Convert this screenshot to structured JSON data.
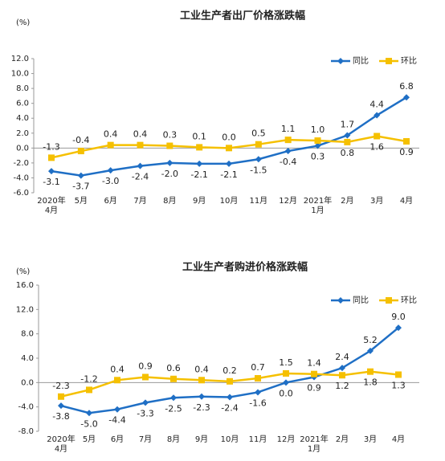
{
  "chart_data": [
    {
      "type": "line",
      "title": "工业生产者出厂价格涨跌幅",
      "y_label": "(%)",
      "categories": [
        "2020年\n4月",
        "5月",
        "6月",
        "7月",
        "8月",
        "9月",
        "10月",
        "11月",
        "12月",
        "2021年\n1月",
        "2月",
        "3月",
        "4月"
      ],
      "ylim": [
        -6,
        12
      ],
      "yticks": [
        {
          "value": -6,
          "label": "-6.0"
        },
        {
          "value": -4,
          "label": "-4.0"
        },
        {
          "value": -2,
          "label": "-2.0"
        },
        {
          "value": 0,
          "label": "0.0"
        },
        {
          "value": 2,
          "label": "2.0"
        },
        {
          "value": 4,
          "label": "4.0"
        },
        {
          "value": 6,
          "label": "6.0"
        },
        {
          "value": 8,
          "label": "8.0"
        },
        {
          "value": 10,
          "label": "10.0"
        },
        {
          "value": 12,
          "label": "12.0"
        }
      ],
      "legend": "top-right",
      "series": [
        {
          "name": "同比",
          "color": "#1f6fc5",
          "marker": "diamond",
          "values": [
            -3.1,
            -3.7,
            -3.0,
            -2.4,
            -2.0,
            -2.1,
            -2.1,
            -1.5,
            -0.4,
            0.3,
            1.7,
            4.4,
            6.8
          ],
          "value_labels": [
            "-3.1",
            "-3.7",
            "-3.0",
            "-2.4",
            "-2.0",
            "-2.1",
            "-2.1",
            "-1.5",
            "-0.4",
            "0.3",
            "1.7",
            "4.4",
            "6.8"
          ]
        },
        {
          "name": "环比",
          "color": "#f5c000",
          "marker": "square",
          "values": [
            -1.3,
            -0.4,
            0.4,
            0.4,
            0.3,
            0.1,
            0.0,
            0.5,
            1.1,
            1.0,
            0.8,
            1.6,
            0.9
          ],
          "value_labels": [
            "-1.3",
            "-0.4",
            "0.4",
            "0.4",
            "0.3",
            "0.1",
            "0.0",
            "0.5",
            "1.1",
            "1.0",
            "0.8",
            "1.6",
            "0.9"
          ]
        }
      ]
    },
    {
      "type": "line",
      "title": "工业生产者购进价格涨跌幅",
      "y_label": "(%)",
      "categories": [
        "2020年\n4月",
        "5月",
        "6月",
        "7月",
        "8月",
        "9月",
        "10月",
        "11月",
        "12月",
        "2021年\n1月",
        "2月",
        "3月",
        "4月"
      ],
      "ylim": [
        -8,
        16
      ],
      "yticks": [
        {
          "value": -8,
          "label": "-8.0"
        },
        {
          "value": -4,
          "label": "-4.0"
        },
        {
          "value": 0,
          "label": "0.0"
        },
        {
          "value": 4,
          "label": "4.0"
        },
        {
          "value": 8,
          "label": "8.0"
        },
        {
          "value": 12,
          "label": "12.0"
        },
        {
          "value": 16,
          "label": "16.0"
        }
      ],
      "legend": "top-right",
      "series": [
        {
          "name": "同比",
          "color": "#1f6fc5",
          "marker": "diamond",
          "values": [
            -3.8,
            -5.0,
            -4.4,
            -3.3,
            -2.5,
            -2.3,
            -2.4,
            -1.6,
            0.0,
            0.9,
            2.4,
            5.2,
            9.0
          ],
          "value_labels": [
            "-3.8",
            "-5.0",
            "-4.4",
            "-3.3",
            "-2.5",
            "-2.3",
            "-2.4",
            "-1.6",
            "0.0",
            "0.9",
            "2.4",
            "5.2",
            "9.0"
          ]
        },
        {
          "name": "环比",
          "color": "#f5c000",
          "marker": "square",
          "values": [
            -2.3,
            -1.2,
            0.4,
            0.9,
            0.6,
            0.4,
            0.2,
            0.7,
            1.5,
            1.4,
            1.2,
            1.8,
            1.3
          ],
          "value_labels": [
            "-2.3",
            "-1.2",
            "0.4",
            "0.9",
            "0.6",
            "0.4",
            "0.2",
            "0.7",
            "1.5",
            "1.4",
            "1.2",
            "1.8",
            "1.3"
          ]
        }
      ]
    }
  ]
}
